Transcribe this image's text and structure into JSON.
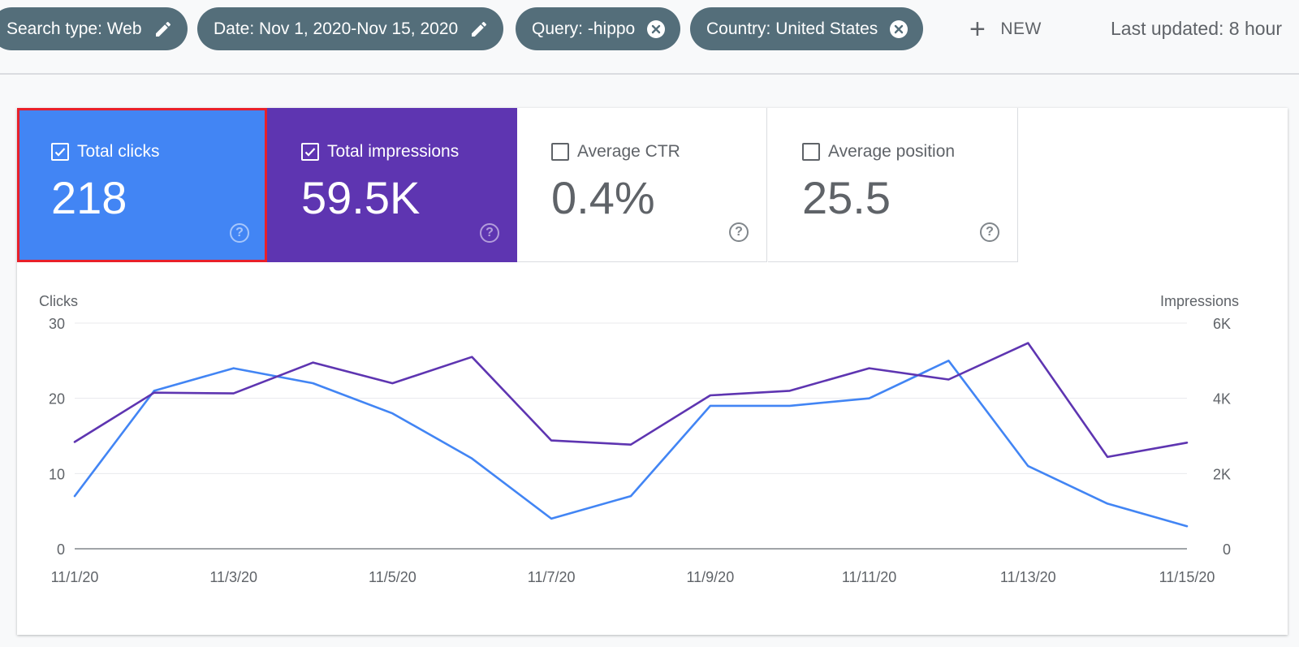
{
  "filters": [
    {
      "label": "Search type: Web",
      "icon": "pencil-icon"
    },
    {
      "label": "Date: Nov 1, 2020-Nov 15, 2020",
      "icon": "pencil-icon"
    },
    {
      "label": "Query: -hippo",
      "icon": "close-circle-icon"
    },
    {
      "label": "Country: United States",
      "icon": "close-circle-icon"
    }
  ],
  "new_button": {
    "label": "NEW",
    "icon": "plus-icon"
  },
  "last_updated": "Last updated: 8 hour",
  "metrics": {
    "clicks": {
      "label": "Total clicks",
      "value": "218",
      "checked": true,
      "color": "#4285f4"
    },
    "impressions": {
      "label": "Total impressions",
      "value": "59.5K",
      "checked": true,
      "color": "#5e35b1"
    },
    "ctr": {
      "label": "Average CTR",
      "value": "0.4%",
      "checked": false
    },
    "position": {
      "label": "Average position",
      "value": "25.5",
      "checked": false
    }
  },
  "help_glyph": "?",
  "chart_data": {
    "type": "line",
    "ylabel_left": "Clicks",
    "ylabel_right": "Impressions",
    "x": [
      "11/1/20",
      "11/2/20",
      "11/3/20",
      "11/4/20",
      "11/5/20",
      "11/6/20",
      "11/7/20",
      "11/8/20",
      "11/9/20",
      "11/10/20",
      "11/11/20",
      "11/12/20",
      "11/13/20",
      "11/14/20",
      "11/15/20"
    ],
    "x_tick_labels": [
      "11/1/20",
      "11/3/20",
      "11/5/20",
      "11/7/20",
      "11/9/20",
      "11/11/20",
      "11/13/20",
      "11/15/20"
    ],
    "y_left": {
      "ticks": [
        0,
        10,
        20,
        30
      ],
      "tick_labels": [
        "0",
        "10",
        "20",
        "30"
      ],
      "ylim": [
        0,
        30
      ]
    },
    "y_right": {
      "ticks": [
        0,
        2000,
        4000,
        6000
      ],
      "tick_labels": [
        "0",
        "2K",
        "4K",
        "6K"
      ],
      "ylim": [
        0,
        6000
      ]
    },
    "grid": true,
    "series": [
      {
        "name": "Total clicks",
        "axis": "left",
        "color": "#4285f4",
        "values": [
          7,
          21,
          24,
          22,
          18,
          12,
          4,
          7,
          19,
          19,
          20,
          25,
          11,
          6,
          3
        ]
      },
      {
        "name": "Total impressions",
        "axis": "right",
        "color": "#5e35b1",
        "values": [
          2840,
          4150,
          4130,
          4950,
          4400,
          5100,
          2880,
          2770,
          4080,
          4200,
          4800,
          4500,
          5470,
          2440,
          2820
        ]
      }
    ]
  }
}
